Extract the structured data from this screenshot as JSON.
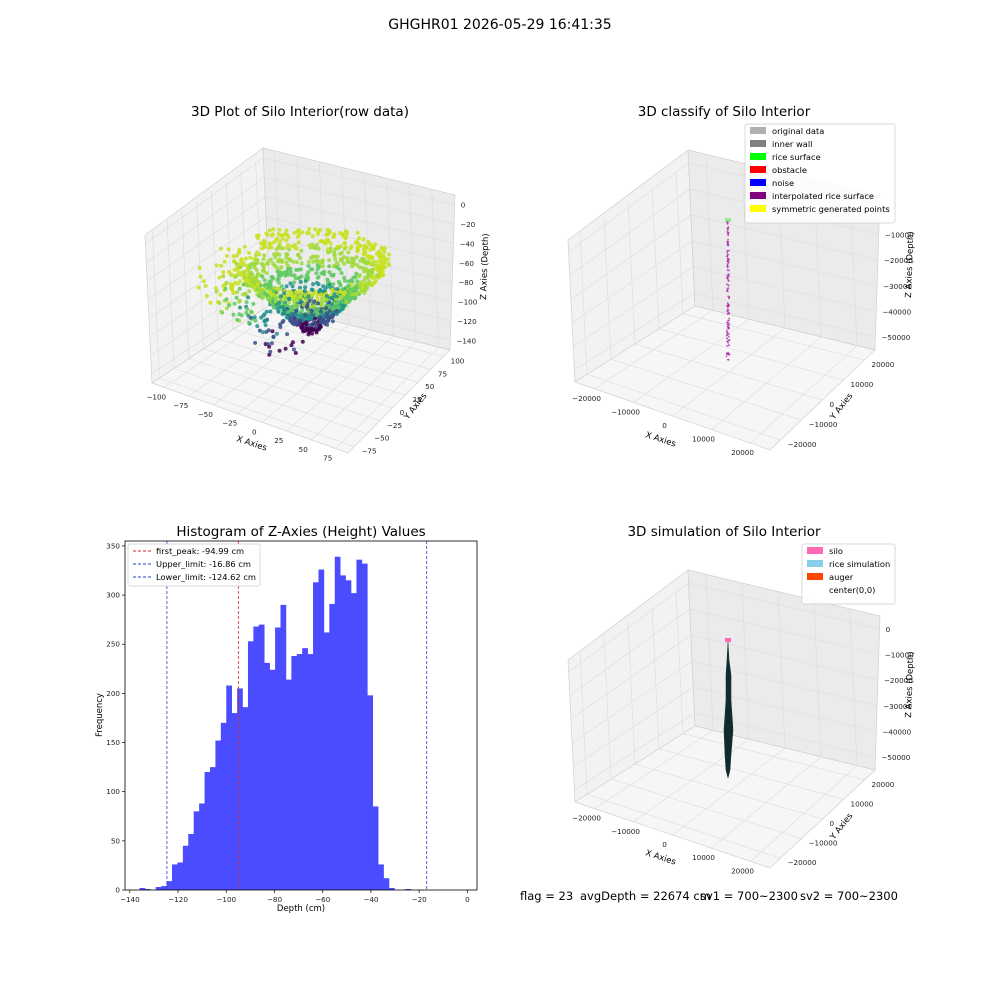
{
  "suptitle": "GHGHR01 2026-05-29 16:41:35",
  "status": {
    "flag": "flag = 23",
    "avg_depth": "avgDepth = 22674 cm",
    "sv1": "sv1 = 700~2300",
    "sv2": "sv2 = 700~2300"
  },
  "chart_data": [
    {
      "type": "scatter",
      "title": "3D Plot of Silo Interior(row data)",
      "xlabel": "X Axies",
      "ylabel": "Y Axies",
      "zlabel": "Z Axies (Depth)",
      "xticks": [
        "−100",
        "−75",
        "−50",
        "−25",
        "0",
        "25",
        "50",
        "75"
      ],
      "yticks": [
        "−75",
        "−50",
        "−25",
        "0",
        "25",
        "50",
        "75",
        "100"
      ],
      "zticks": [
        "−140",
        "−120",
        "−100",
        "−80",
        "−60",
        "−40",
        "−20",
        "0"
      ],
      "xlim": [
        -110,
        80
      ],
      "ylim": [
        -90,
        110
      ],
      "zlim": [
        -145,
        5
      ],
      "colormap": [
        "#440154",
        "#3b528b",
        "#21918c",
        "#5ec962",
        "#a0da39",
        "#c8e020"
      ],
      "points_description": "dense cloud of depth points forming a funnel-shaped rice surface, colored by depth"
    },
    {
      "type": "scatter",
      "title": "3D classify of Silo Interior",
      "xlabel": "X Axies",
      "ylabel": "Y Axies",
      "zlabel": "Z Axies (Depth)",
      "xticks": [
        "−20000",
        "−10000",
        "0",
        "10000",
        "20000"
      ],
      "yticks": [
        "−20000",
        "−10000",
        "0",
        "10000",
        "20000"
      ],
      "zticks": [
        "−50000",
        "−40000",
        "−30000",
        "−20000",
        "−10000",
        "0"
      ],
      "xlim": [
        -25000,
        25000
      ],
      "ylim": [
        -25000,
        25000
      ],
      "zlim": [
        -55000,
        2000
      ],
      "legend_position": "top-right",
      "legend": [
        {
          "label": "original data",
          "color": "#b0b0b0"
        },
        {
          "label": "inner wall",
          "color": "#808080"
        },
        {
          "label": "rice surface",
          "color": "#00ff00"
        },
        {
          "label": "obstacle",
          "color": "#ff0000"
        },
        {
          "label": "noise",
          "color": "#0000ff"
        },
        {
          "label": "interpolated rice surface",
          "color": "#800080"
        },
        {
          "label": "symmetric generated points",
          "color": "#ffff00"
        }
      ]
    },
    {
      "type": "bar",
      "title": "Histogram of Z-Axies (Height) Values",
      "xlabel": "Depth (cm)",
      "ylabel": "Frequency",
      "xlim": [
        -142,
        4
      ],
      "ylim": [
        0,
        355
      ],
      "xticks": [
        -140,
        -120,
        -100,
        -80,
        -60,
        -40,
        -20,
        0
      ],
      "yticks": [
        0,
        50,
        100,
        150,
        200,
        250,
        300,
        350
      ],
      "bar_color": "#4b4bff",
      "bin_start": -136,
      "bin_width": 2.25,
      "values": [
        2,
        1,
        0,
        3,
        4,
        9,
        26,
        28,
        45,
        57,
        80,
        88,
        120,
        125,
        152,
        170,
        208,
        180,
        205,
        186,
        253,
        268,
        270,
        231,
        224,
        267,
        290,
        214,
        238,
        240,
        246,
        240,
        313,
        326,
        262,
        291,
        339,
        320,
        315,
        302,
        336,
        332,
        198,
        85,
        26,
        12,
        2,
        0,
        0,
        1
      ],
      "legend_position": "top-left",
      "reference_lines": [
        {
          "label": "first_peak: -94.99 cm",
          "x": -94.99,
          "color": "#d62728"
        },
        {
          "label": "Upper_limit: -16.86 cm",
          "x": -16.86,
          "color": "#1f3fd6"
        },
        {
          "label": "Lower_limit: -124.62 cm",
          "x": -124.62,
          "color": "#1f3fd6"
        }
      ]
    },
    {
      "type": "scatter",
      "title": "3D simulation of Silo Interior",
      "xlabel": "X Axies",
      "ylabel": "Y Axies",
      "zlabel": "Z Axies (Depth)",
      "xticks": [
        "−20000",
        "−10000",
        "0",
        "10000",
        "20000"
      ],
      "yticks": [
        "−20000",
        "−10000",
        "0",
        "10000",
        "20000"
      ],
      "zticks": [
        "−50000",
        "−40000",
        "−30000",
        "−20000",
        "−10000",
        "0"
      ],
      "xlim": [
        -25000,
        25000
      ],
      "ylim": [
        -25000,
        25000
      ],
      "zlim": [
        -55000,
        2000
      ],
      "legend_position": "top-right",
      "legend": [
        {
          "label": "silo",
          "color": "#ff69b4"
        },
        {
          "label": "rice simulation",
          "color": "#87ceeb"
        },
        {
          "label": "auger",
          "color": "#ff4500"
        },
        {
          "label": "center(0,0)",
          "color": "#ffffff"
        }
      ]
    }
  ]
}
